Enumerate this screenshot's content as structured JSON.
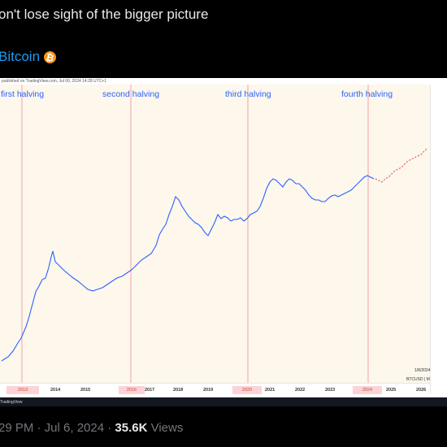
{
  "tweet": {
    "text": "on't lose sight of the bigger picture",
    "hashtag": "Bitcoin",
    "hashtag_icon": "bitcoin-icon",
    "hashtag_icon_glyph": "₿",
    "meta_time": "29 PM · Jul 6, 2024 · ",
    "views_count": "35.6K",
    "views_label": " Views"
  },
  "chart": {
    "meta": "published on TradingView.com, Jul 06, 2024 14:28 UTC+1",
    "footer": "TradingView",
    "last_date": "1/8/2024",
    "symbol": "BTCUSD | M",
    "halving_labels": [
      "first halving",
      "second halving",
      "third halving",
      "fourth halving"
    ],
    "years": [
      "2014",
      "2015",
      "2017",
      "2018",
      "2019",
      "2021",
      "2022",
      "2023",
      "2025",
      "2026"
    ],
    "halving_years": [
      "2013",
      "2016",
      "2020",
      "2024"
    ],
    "colors": {
      "candles": "#2962ff",
      "projection": "#f23645",
      "halving_line": "#f5a3a3",
      "background": "#fdf7ec"
    }
  }
}
